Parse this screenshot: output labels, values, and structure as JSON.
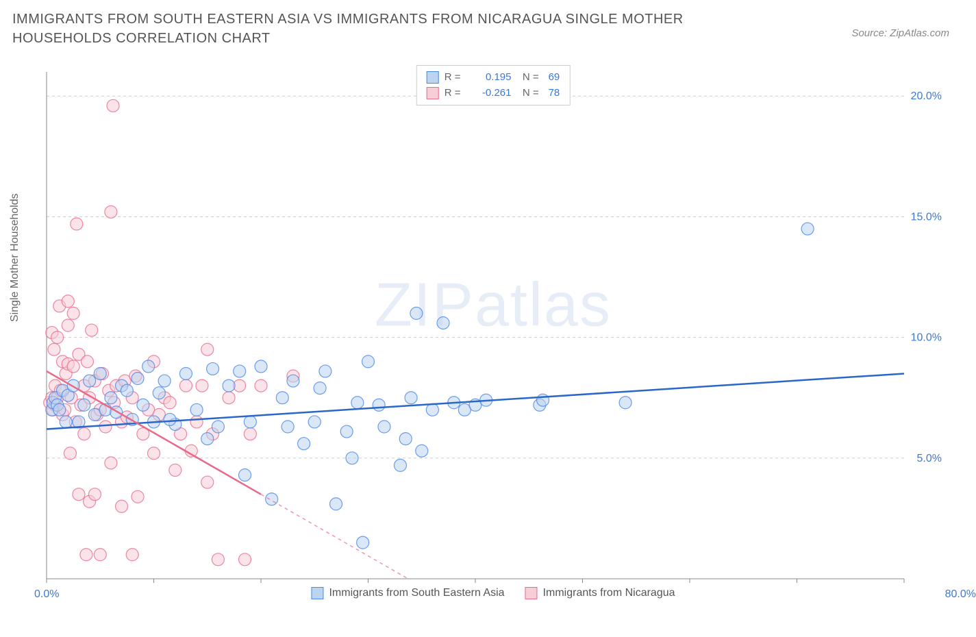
{
  "title": "IMMIGRANTS FROM SOUTH EASTERN ASIA VS IMMIGRANTS FROM NICARAGUA SINGLE MOTHER HOUSEHOLDS CORRELATION CHART",
  "source": "Source: ZipAtlas.com",
  "ylabel": "Single Mother Households",
  "watermark_a": "ZIP",
  "watermark_b": "atlas",
  "chart": {
    "type": "scatter",
    "xlim": [
      0,
      80
    ],
    "ylim": [
      0,
      21
    ],
    "xtick_positions": [
      0,
      10,
      20,
      30,
      40,
      50,
      60,
      70,
      80
    ],
    "xtick_labels_shown": {
      "0": "0.0%",
      "80": "80.0%"
    },
    "ytick_positions": [
      5,
      10,
      15,
      20
    ],
    "ytick_labels": [
      "5.0%",
      "10.0%",
      "15.0%",
      "20.0%"
    ],
    "grid_color": "#cccccc",
    "grid_dash": "4,4",
    "background_color": "#ffffff",
    "axis_color": "#888888",
    "marker_radius": 9,
    "marker_stroke_width": 1.2,
    "trend_line_width": 2.5,
    "xlabel_color_left": "#3a78d8",
    "xlabel_color_right": "#3a78d8"
  },
  "series": [
    {
      "name": "Immigrants from South Eastern Asia",
      "short": "se_asia",
      "fill": "#bcd4f0",
      "stroke": "#4a86e8",
      "line_color": "#2a67c9",
      "R": "0.195",
      "N": "69",
      "trend": {
        "x1": 0,
        "y1": 6.2,
        "x2": 80,
        "y2": 8.5,
        "extrapolate_from": 80
      },
      "data": [
        [
          0.5,
          7.0
        ],
        [
          0.6,
          7.3
        ],
        [
          0.8,
          7.5
        ],
        [
          1.0,
          7.2
        ],
        [
          1.2,
          7.0
        ],
        [
          1.5,
          7.8
        ],
        [
          1.8,
          6.5
        ],
        [
          2.0,
          7.6
        ],
        [
          2.5,
          8.0
        ],
        [
          3.0,
          6.5
        ],
        [
          3.5,
          7.2
        ],
        [
          4.0,
          8.2
        ],
        [
          4.5,
          6.8
        ],
        [
          5.0,
          8.5
        ],
        [
          5.5,
          7.0
        ],
        [
          6.0,
          7.5
        ],
        [
          6.5,
          6.9
        ],
        [
          7.0,
          8.0
        ],
        [
          7.5,
          7.8
        ],
        [
          8.0,
          6.6
        ],
        [
          8.5,
          8.3
        ],
        [
          9.0,
          7.2
        ],
        [
          9.5,
          8.8
        ],
        [
          10.0,
          6.5
        ],
        [
          10.5,
          7.7
        ],
        [
          11.0,
          8.2
        ],
        [
          12.0,
          6.4
        ],
        [
          13.0,
          8.5
        ],
        [
          14.0,
          7.0
        ],
        [
          15.0,
          5.8
        ],
        [
          15.5,
          8.7
        ],
        [
          16.0,
          6.3
        ],
        [
          17.0,
          8.0
        ],
        [
          18.0,
          8.6
        ],
        [
          18.5,
          4.3
        ],
        [
          19.0,
          6.5
        ],
        [
          20.0,
          8.8
        ],
        [
          21.0,
          3.3
        ],
        [
          22.0,
          7.5
        ],
        [
          22.5,
          6.3
        ],
        [
          23.0,
          8.2
        ],
        [
          24.0,
          5.6
        ],
        [
          25.0,
          6.5
        ],
        [
          25.5,
          7.9
        ],
        [
          26.0,
          8.6
        ],
        [
          27.0,
          3.1
        ],
        [
          28.0,
          6.1
        ],
        [
          28.5,
          5.0
        ],
        [
          29.0,
          7.3
        ],
        [
          29.5,
          1.5
        ],
        [
          30.0,
          9.0
        ],
        [
          31.0,
          7.2
        ],
        [
          31.5,
          6.3
        ],
        [
          33.0,
          4.7
        ],
        [
          33.5,
          5.8
        ],
        [
          34.0,
          7.5
        ],
        [
          34.5,
          11.0
        ],
        [
          35.0,
          5.3
        ],
        [
          36.0,
          7.0
        ],
        [
          37.0,
          10.6
        ],
        [
          38.0,
          7.3
        ],
        [
          39.0,
          7.0
        ],
        [
          40.0,
          7.2
        ],
        [
          41.0,
          7.4
        ],
        [
          46.0,
          7.2
        ],
        [
          46.3,
          7.4
        ],
        [
          54.0,
          7.3
        ],
        [
          71.0,
          14.5
        ],
        [
          11.5,
          6.6
        ]
      ]
    },
    {
      "name": "Immigrants from Nicaragua",
      "short": "nicaragua",
      "fill": "#f7cdd7",
      "stroke": "#e86a8a",
      "line_color": "#e86a8a",
      "R": "-0.261",
      "N": "78",
      "trend": {
        "x1": 0,
        "y1": 8.6,
        "x2": 20,
        "y2": 3.5,
        "extrapolate_from": 20
      },
      "data": [
        [
          0.3,
          7.3
        ],
        [
          0.5,
          7.5
        ],
        [
          0.5,
          10.2
        ],
        [
          0.6,
          7.0
        ],
        [
          0.7,
          9.5
        ],
        [
          0.8,
          7.2
        ],
        [
          0.8,
          8.0
        ],
        [
          1.0,
          10.0
        ],
        [
          1.0,
          7.5
        ],
        [
          1.2,
          11.3
        ],
        [
          1.3,
          7.8
        ],
        [
          1.5,
          9.0
        ],
        [
          1.5,
          6.8
        ],
        [
          1.7,
          7.0
        ],
        [
          1.8,
          8.5
        ],
        [
          2.0,
          8.9
        ],
        [
          2.0,
          10.5
        ],
        [
          2.2,
          5.2
        ],
        [
          2.3,
          7.5
        ],
        [
          2.5,
          8.8
        ],
        [
          2.5,
          11.0
        ],
        [
          2.7,
          6.5
        ],
        [
          2.8,
          14.7
        ],
        [
          3.0,
          9.3
        ],
        [
          3.0,
          3.5
        ],
        [
          3.2,
          7.2
        ],
        [
          3.5,
          6.0
        ],
        [
          3.5,
          8.0
        ],
        [
          3.7,
          1.0
        ],
        [
          3.8,
          9.0
        ],
        [
          4.0,
          7.5
        ],
        [
          4.0,
          3.2
        ],
        [
          4.2,
          10.3
        ],
        [
          4.5,
          8.2
        ],
        [
          4.5,
          3.5
        ],
        [
          4.7,
          6.8
        ],
        [
          5.0,
          7.0
        ],
        [
          5.0,
          1.0
        ],
        [
          5.2,
          8.5
        ],
        [
          5.5,
          6.3
        ],
        [
          5.8,
          7.8
        ],
        [
          6.0,
          15.2
        ],
        [
          6.0,
          4.8
        ],
        [
          6.2,
          19.6
        ],
        [
          6.3,
          7.3
        ],
        [
          6.5,
          8.0
        ],
        [
          7.0,
          6.5
        ],
        [
          7.0,
          3.0
        ],
        [
          7.3,
          8.2
        ],
        [
          7.5,
          6.7
        ],
        [
          8.0,
          7.5
        ],
        [
          8.0,
          1.0
        ],
        [
          8.3,
          8.4
        ],
        [
          8.5,
          3.4
        ],
        [
          9.0,
          6.0
        ],
        [
          9.5,
          7.0
        ],
        [
          10.0,
          9.0
        ],
        [
          10.0,
          5.2
        ],
        [
          10.5,
          6.8
        ],
        [
          11.0,
          7.5
        ],
        [
          11.5,
          7.3
        ],
        [
          12.0,
          4.5
        ],
        [
          12.5,
          6.0
        ],
        [
          13.0,
          8.0
        ],
        [
          13.5,
          5.3
        ],
        [
          14.0,
          6.5
        ],
        [
          14.5,
          8.0
        ],
        [
          15.0,
          9.5
        ],
        [
          15.0,
          4.0
        ],
        [
          15.5,
          6.0
        ],
        [
          16.0,
          0.8
        ],
        [
          17.0,
          7.5
        ],
        [
          18.0,
          8.0
        ],
        [
          18.5,
          0.8
        ],
        [
          19.0,
          6.0
        ],
        [
          20.0,
          8.0
        ],
        [
          23.0,
          8.4
        ],
        [
          2.0,
          11.5
        ]
      ]
    }
  ],
  "legend_bottom": [
    {
      "swatch_fill": "#bcd4f0",
      "swatch_stroke": "#4a86e8",
      "label": "Immigrants from South Eastern Asia"
    },
    {
      "swatch_fill": "#f7cdd7",
      "swatch_stroke": "#e86a8a",
      "label": "Immigrants from Nicaragua"
    }
  ]
}
